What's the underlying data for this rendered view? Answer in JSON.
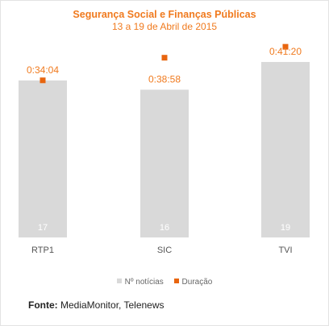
{
  "colors": {
    "bar": "#d9d9d9",
    "marker": "#e8650f",
    "title": "#f07a1e",
    "duration_label": "#f07a1e",
    "count_label": "#ffffff",
    "axis_label": "#555555"
  },
  "legend": {
    "position": "bottom",
    "items": [
      {
        "label": "Nº notícias",
        "color": "#d9d9d9"
      },
      {
        "label": "Duração",
        "color": "#e8650f"
      }
    ]
  },
  "source": {
    "label": "Fonte:",
    "text": " MediaMonitor, Telenews"
  },
  "chart_data": {
    "type": "bar",
    "title": "Segurança Social e Finanças Públicas",
    "subtitle": "13 a 19 de Abril de 2015",
    "categories": [
      "RTP1",
      "SIC",
      "TVI"
    ],
    "series": [
      {
        "name": "Nº notícias",
        "type": "bar",
        "values": [
          17,
          16,
          19
        ]
      },
      {
        "name": "Duração",
        "type": "scatter",
        "values_seconds": [
          2044,
          2338,
          2480
        ],
        "labels": [
          "0:34:04",
          "0:38:58",
          "0:41:20"
        ]
      }
    ],
    "bar_axis_range": [
      0,
      19
    ],
    "duration_axis_range_seconds": [
      0,
      2670
    ],
    "grid": false
  }
}
